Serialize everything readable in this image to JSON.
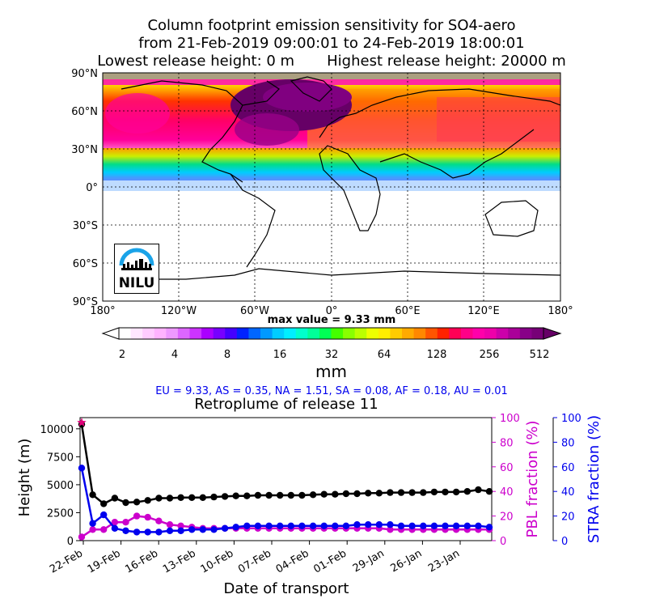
{
  "title": {
    "line1": "Column footprint emission sensitivity for SO4-aero",
    "line2": "from 21-Feb-2019 09:00:01 to 24-Feb-2019 18:00:01",
    "line3": "Lowest release height: 0 m       Highest release height: 20000 m"
  },
  "map": {
    "lat_labels": [
      "90°N",
      "60°N",
      "30°N",
      "0°",
      "30°S",
      "60°S",
      "90°S"
    ],
    "lon_labels": [
      "180°",
      "120°W",
      "60°W",
      "0°",
      "60°E",
      "120°E",
      "180°"
    ],
    "max_value_text": "max value = 9.33 mm",
    "logo_text": "NILU"
  },
  "colorbar": {
    "tick_labels": [
      "2",
      "4",
      "8",
      "16",
      "32",
      "64",
      "128",
      "256",
      "512"
    ],
    "units": "mm"
  },
  "region_summary": "EU = 9.33,  AS = 0.35,  NA = 1.51,  SA = 0.08,  AF = 0.18,  AU = 0.01",
  "chart_data": {
    "type": "line",
    "title": "Retroplume of release 11",
    "xlabel": "Date of transport",
    "ylabel": "Height (m)",
    "y2label": "PBL fraction (%)",
    "y3label": "STRA fraction (%)",
    "x_tick_labels": [
      "22-Feb",
      "19-Feb",
      "16-Feb",
      "13-Feb",
      "10-Feb",
      "07-Feb",
      "04-Feb",
      "01-Feb",
      "29-Jan",
      "26-Jan",
      "23-Jan"
    ],
    "y_ticks": [
      "0",
      "2500",
      "5000",
      "7500",
      "10000"
    ],
    "y2_ticks": [
      "0",
      "20",
      "40",
      "60",
      "80",
      "100"
    ],
    "y3_ticks": [
      "0",
      "20",
      "40",
      "60",
      "80",
      "100"
    ],
    "ylim": [
      0,
      11000
    ],
    "y2lim": [
      0,
      100
    ],
    "y3lim": [
      0,
      100
    ],
    "series": [
      {
        "axis": "height",
        "color": "#000000",
        "values": [
          10400,
          4100,
          3300,
          3800,
          3400,
          3450,
          3600,
          3800,
          3800,
          3850,
          3850,
          3850,
          3900,
          3950,
          4000,
          4000,
          4050,
          4050,
          4050,
          4050,
          4050,
          4100,
          4150,
          4150,
          4200,
          4200,
          4250,
          4250,
          4300,
          4300,
          4300,
          4300,
          4350,
          4350,
          4350,
          4400,
          4550,
          4400
        ]
      },
      {
        "axis": "pbl",
        "color": "#cc00cc",
        "values": [
          3,
          9,
          9,
          15,
          15,
          20,
          19,
          16,
          13,
          12,
          11,
          10,
          10,
          10,
          10,
          10,
          10,
          10,
          10,
          10,
          10,
          10,
          10,
          10,
          10,
          10,
          10,
          10,
          9,
          9,
          9,
          9,
          9,
          9,
          9,
          9,
          9,
          9
        ]
      },
      {
        "axis": "stra",
        "color": "#0000ee",
        "values": [
          59,
          14,
          21,
          10,
          8,
          7,
          7,
          7,
          8,
          8,
          9,
          9,
          9,
          10,
          11,
          12,
          12,
          12,
          12,
          12,
          12,
          12,
          12,
          12,
          12,
          13,
          13,
          13,
          13,
          12,
          12,
          12,
          12,
          12,
          12,
          12,
          12,
          11
        ]
      }
    ],
    "start_marker": {
      "height": 10400,
      "pbl": 96,
      "color": "#e0007a"
    }
  }
}
